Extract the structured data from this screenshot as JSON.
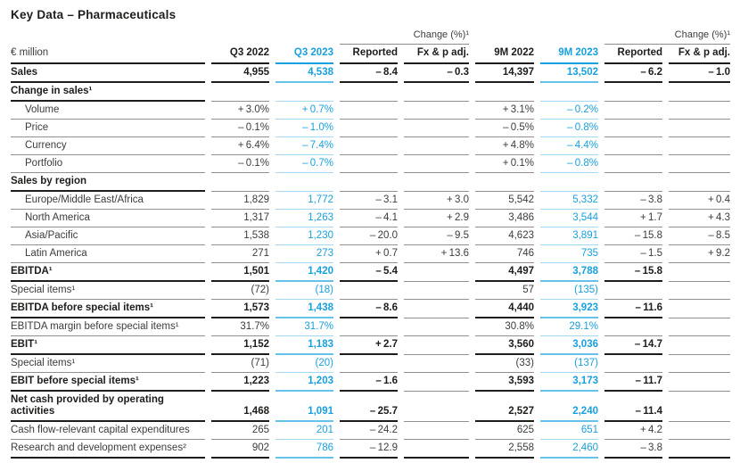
{
  "title": "Key Data – Pharmaceuticals",
  "colors": {
    "accent_blue": "#18a0df",
    "accent_blue_light": "#a5d9f2",
    "line_dark": "#1d1d1b",
    "line_gray": "#909090"
  },
  "table": {
    "unit_header": "€ million",
    "change_group_label": "Change (%)¹",
    "columns": [
      "Q3 2022",
      "Q3 2023",
      "Reported",
      "Fx & p adj.",
      "9M 2022",
      "9M 2023",
      "Reported",
      "Fx & p adj."
    ],
    "blue_columns": [
      "Q3 2023",
      "9M 2023"
    ],
    "col_keys": [
      "q3-2022",
      "q3-2023",
      "reported-q3",
      "fx-p-adj-q3",
      "9m-2022",
      "9m-2023",
      "reported-9m",
      "fx-p-adj-9m"
    ],
    "rows": [
      {
        "label": "Sales",
        "bold": true,
        "values": [
          "4,955",
          "4,538",
          "– 8.4",
          "– 0.3",
          "14,397",
          "13,502",
          "– 6.2",
          "– 1.0"
        ]
      },
      {
        "label": "Change in sales¹",
        "bold": true,
        "section": true,
        "values": [
          "",
          "",
          "",
          "",
          "",
          "",
          "",
          ""
        ]
      },
      {
        "label": "Volume",
        "indent": true,
        "values": [
          "+ 3.0%",
          "+ 0.7%",
          "",
          "",
          "+ 3.1%",
          "– 0.2%",
          "",
          ""
        ]
      },
      {
        "label": "Price",
        "indent": true,
        "values": [
          "– 0.1%",
          "– 1.0%",
          "",
          "",
          "– 0.5%",
          "– 0.8%",
          "",
          ""
        ]
      },
      {
        "label": "Currency",
        "indent": true,
        "values": [
          "+ 6.4%",
          "– 7.4%",
          "",
          "",
          "+ 4.8%",
          "– 4.4%",
          "",
          ""
        ]
      },
      {
        "label": "Portfolio",
        "indent": true,
        "values": [
          "– 0.1%",
          "– 0.7%",
          "",
          "",
          "+ 0.1%",
          "– 0.8%",
          "",
          ""
        ]
      },
      {
        "label": "Sales by region",
        "bold": true,
        "section": true,
        "values": [
          "",
          "",
          "",
          "",
          "",
          "",
          "",
          ""
        ]
      },
      {
        "label": "Europe/Middle East/Africa",
        "indent": true,
        "values": [
          "1,829",
          "1,772",
          "– 3.1",
          "+ 3.0",
          "5,542",
          "5,332",
          "– 3.8",
          "+ 0.4"
        ]
      },
      {
        "label": "North America",
        "indent": true,
        "values": [
          "1,317",
          "1,263",
          "– 4.1",
          "+ 2.9",
          "3,486",
          "3,544",
          "+ 1.7",
          "+ 4.3"
        ]
      },
      {
        "label": "Asia/Pacific",
        "indent": true,
        "values": [
          "1,538",
          "1,230",
          "– 20.0",
          "– 9.5",
          "4,623",
          "3,891",
          "– 15.8",
          "– 8.5"
        ]
      },
      {
        "label": "Latin America",
        "indent": true,
        "values": [
          "271",
          "273",
          "+ 0.7",
          "+ 13.6",
          "746",
          "735",
          "– 1.5",
          "+ 9.2"
        ]
      },
      {
        "label": "EBITDA¹",
        "bold": true,
        "values": [
          "1,501",
          "1,420",
          "– 5.4",
          "",
          "4,497",
          "3,788",
          "– 15.8",
          ""
        ]
      },
      {
        "label": "Special items¹",
        "values": [
          "(72)",
          "(18)",
          "",
          "",
          "57",
          "(135)",
          "",
          ""
        ]
      },
      {
        "label": "EBITDA before special items¹",
        "bold": true,
        "values": [
          "1,573",
          "1,438",
          "– 8.6",
          "",
          "4,440",
          "3,923",
          "– 11.6",
          ""
        ]
      },
      {
        "label": "EBITDA margin before special items¹",
        "values": [
          "31.7%",
          "31.7%",
          "",
          "",
          "30.8%",
          "29.1%",
          "",
          ""
        ]
      },
      {
        "label": "EBIT¹",
        "bold": true,
        "values": [
          "1,152",
          "1,183",
          "+ 2.7",
          "",
          "3,560",
          "3,036",
          "– 14.7",
          ""
        ]
      },
      {
        "label": "Special items¹",
        "values": [
          "(71)",
          "(20)",
          "",
          "",
          "(33)",
          "(137)",
          "",
          ""
        ]
      },
      {
        "label": "EBIT before special items¹",
        "bold": true,
        "values": [
          "1,223",
          "1,203",
          "– 1.6",
          "",
          "3,593",
          "3,173",
          "– 11.7",
          ""
        ]
      },
      {
        "label": "Net cash provided by operating activities",
        "bold": true,
        "values": [
          "1,468",
          "1,091",
          "– 25.7",
          "",
          "2,527",
          "2,240",
          "– 11.4",
          ""
        ]
      },
      {
        "label": "Cash flow-relevant capital expenditures",
        "values": [
          "265",
          "201",
          "– 24.2",
          "",
          "625",
          "651",
          "+ 4.2",
          ""
        ]
      },
      {
        "label": "Research and development expenses²",
        "final": true,
        "values": [
          "902",
          "786",
          "– 12.9",
          "",
          "2,558",
          "2,460",
          "– 3.8",
          ""
        ]
      }
    ]
  }
}
